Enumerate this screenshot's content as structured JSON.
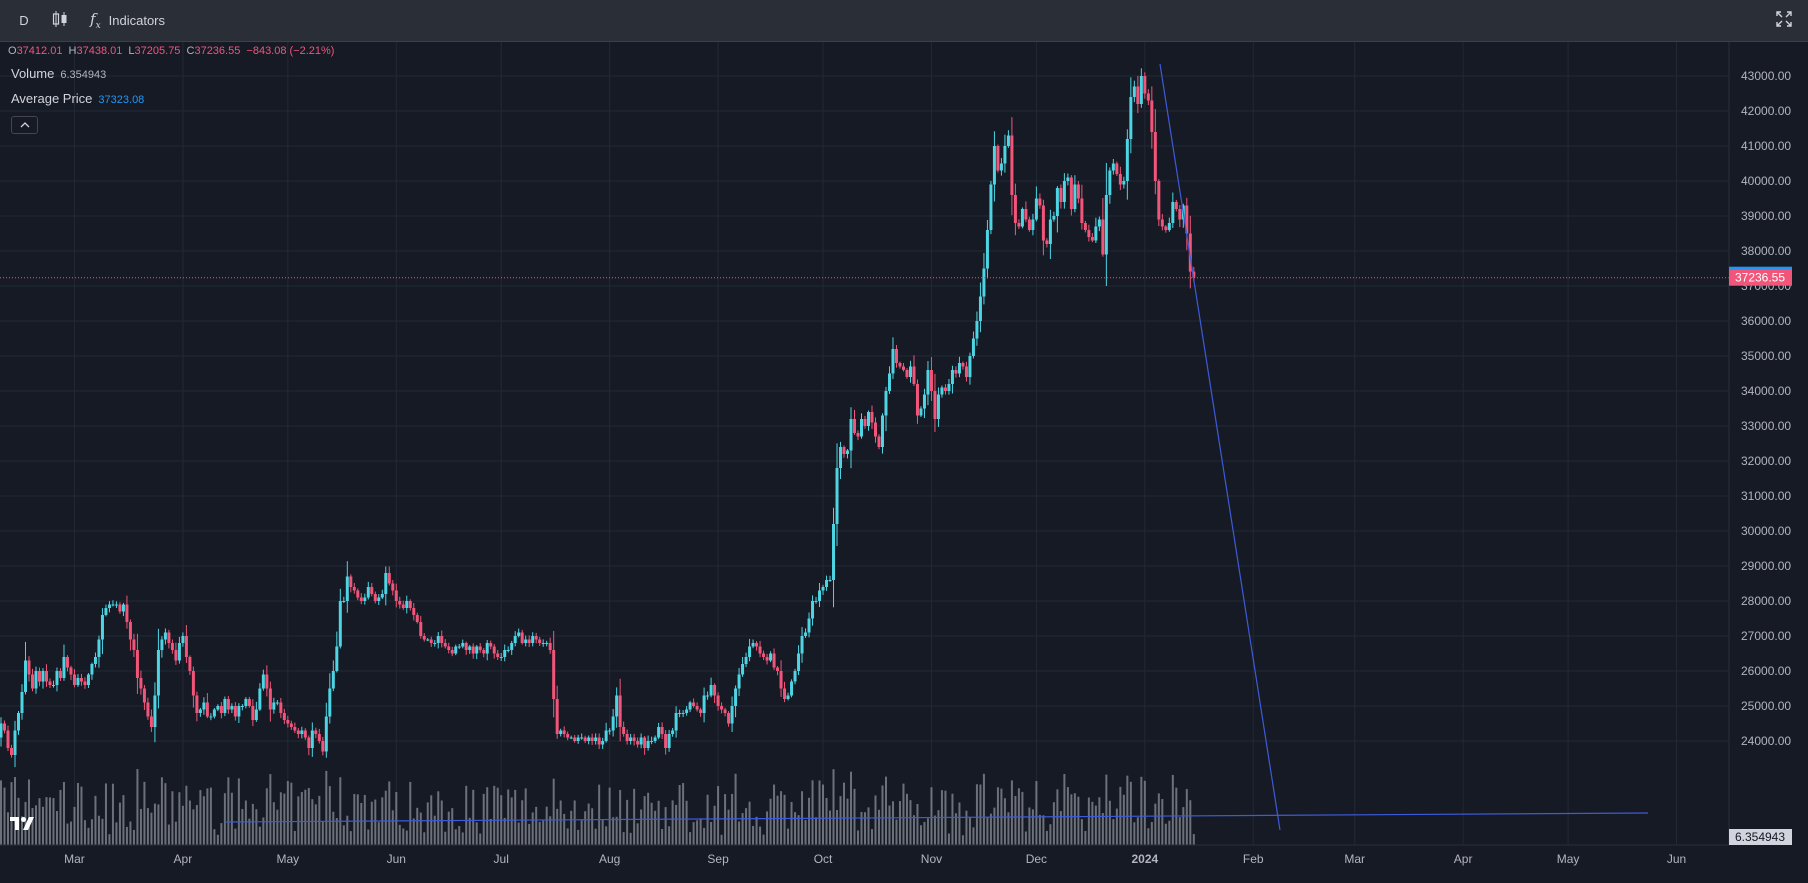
{
  "toolbar": {
    "interval": "D",
    "indicators_label": "Indicators",
    "chart_type_icon": "candlestick-icon",
    "fullscreen_icon": "fullscreen-icon"
  },
  "legend": {
    "o_key": "O",
    "o_val": "37412.01",
    "h_key": "H",
    "h_val": "37438.01",
    "l_key": "L",
    "l_val": "37205.75",
    "c_key": "C",
    "c_val": "37236.55",
    "change": "−843.08 (−2.21%)",
    "volume_label": "Volume",
    "volume_value": "6.354943",
    "avg_label": "Average Price",
    "avg_value": "37323.08"
  },
  "colors": {
    "up": "#4dd5e3",
    "down": "#f2557a",
    "avg_badge": "#2196f3",
    "price_badge": "#f2557a",
    "volume": "#8a8d96",
    "trendline": "#3d5bd9",
    "grid": "#232837"
  },
  "price_axis": {
    "labels": [
      "43000.00",
      "42000.00",
      "41000.00",
      "40000.00",
      "39000.00",
      "38000.00",
      "37000.00",
      "36000.00",
      "35000.00",
      "34000.00",
      "33000.00",
      "32000.00",
      "31000.00",
      "30000.00",
      "29000.00",
      "28000.00",
      "27000.00",
      "26000.00",
      "25000.00",
      "24000.00"
    ],
    "avg_badge": "37323.08",
    "price_badge": "37236.55",
    "volume_badge": "6.354943"
  },
  "time_axis": {
    "labels": [
      "Mar",
      "Apr",
      "May",
      "Jun",
      "Jul",
      "Aug",
      "Sep",
      "Oct",
      "Nov",
      "Dec",
      "2024",
      "Feb",
      "Mar",
      "Apr",
      "May",
      "Jun"
    ]
  },
  "chart_data": {
    "type": "candlestick",
    "series_name": "",
    "ylim": [
      23400,
      43800
    ],
    "x_range": [
      "2023-02-12",
      "2024-06-12"
    ],
    "last_date": "2024-01-15",
    "current_price": 37236.55,
    "average_price": 37323.08,
    "closes": [
      23400,
      23700,
      24300,
      24000,
      24700,
      24400,
      23900,
      23600,
      24100,
      24500,
      24300,
      23800,
      23600,
      24300,
      24800,
      25400,
      26300,
      25900,
      25500,
      26000,
      25700,
      26000,
      25700,
      25600,
      25600,
      26000,
      25800,
      26400,
      26100,
      25900,
      25600,
      25800,
      25700,
      25600,
      25900,
      26200,
      26400,
      26900,
      27600,
      27800,
      27900,
      27900,
      27900,
      27700,
      27900,
      27400,
      26900,
      26600,
      25800,
      25500,
      25100,
      24700,
      24400,
      25300,
      26600,
      26900,
      27100,
      26800,
      26600,
      26300,
      26800,
      27000,
      26400,
      26000,
      25300,
      24800,
      24900,
      25100,
      24700,
      24700,
      24900,
      25000,
      24800,
      25200,
      24900,
      25000,
      24700,
      25000,
      25000,
      25200,
      25000,
      24600,
      24900,
      25500,
      25900,
      25500,
      24900,
      25100,
      25100,
      24800,
      24600,
      24500,
      24400,
      24300,
      24200,
      24300,
      24100,
      23800,
      24300,
      24200,
      24000,
      23700,
      24700,
      25500,
      26000,
      26700,
      28000,
      28000,
      28700,
      28400,
      28300,
      28100,
      28000,
      28100,
      28400,
      28200,
      28000,
      28100,
      28200,
      28800,
      28500,
      28300,
      28000,
      27900,
      27800,
      28000,
      27800,
      27600,
      27400,
      27000,
      26900,
      26900,
      26800,
      26800,
      27000,
      26800,
      26700,
      26600,
      26500,
      26700,
      26700,
      26800,
      26600,
      26700,
      26500,
      26700,
      26600,
      26500,
      26800,
      26700,
      26500,
      26400,
      26400,
      26600,
      26600,
      26800,
      27000,
      27100,
      26800,
      26900,
      26800,
      27000,
      26900,
      26800,
      26800,
      26800,
      26600,
      25200,
      24200,
      24300,
      24200,
      24100,
      24100,
      24000,
      24100,
      24100,
      24000,
      24100,
      24000,
      24100,
      23900,
      24000,
      24300,
      24300,
      24700,
      25300,
      24400,
      24200,
      24000,
      24100,
      24000,
      23900,
      24100,
      23800,
      24000,
      24000,
      24100,
      24400,
      24200,
      23800,
      24200,
      24300,
      24800,
      24800,
      24800,
      24900,
      25100,
      25000,
      24900,
      24800,
      25300,
      25300,
      25600,
      25300,
      25000,
      24900,
      24800,
      24500,
      25000,
      25500,
      25900,
      26200,
      26400,
      26700,
      26800,
      26700,
      26500,
      26400,
      26300,
      26500,
      26100,
      26000,
      25500,
      25200,
      25300,
      25700,
      26000,
      26500,
      27000,
      27100,
      27500,
      28000,
      28000,
      28300,
      28400,
      28600,
      28600,
      30200,
      31800,
      32400,
      32200,
      32300,
      33200,
      32800,
      32700,
      33200,
      33000,
      33400,
      33100,
      32700,
      32400,
      33300,
      34000,
      34500,
      35200,
      34800,
      34700,
      34600,
      34400,
      34700,
      34200,
      33300,
      33500,
      33900,
      34600,
      34000,
      33200,
      33900,
      34100,
      34000,
      34200,
      34600,
      34500,
      34800,
      34700,
      34400,
      35000,
      35500,
      36000,
      36700,
      37500,
      38600,
      39900,
      41000,
      40300,
      40500,
      41000,
      41300,
      39600,
      38800,
      38700,
      39200,
      38900,
      38600,
      38900,
      39500,
      39300,
      38300,
      38200,
      38900,
      39000,
      39800,
      39400,
      40000,
      40100,
      39200,
      39900,
      39500,
      38800,
      38600,
      38400,
      38300,
      38700,
      38900,
      37900,
      39600,
      40300,
      40500,
      40200,
      39900,
      40000,
      41200,
      42400,
      42700,
      42200,
      43000,
      42500,
      42300,
      41400,
      40000,
      38900,
      38700,
      38600,
      38800,
      39400,
      39200,
      38900,
      39300,
      38500,
      37412,
      37237
    ]
  }
}
